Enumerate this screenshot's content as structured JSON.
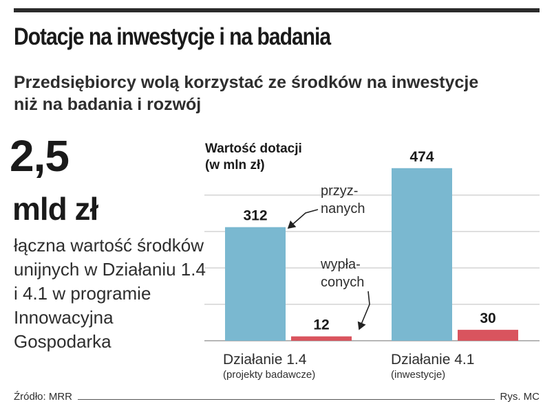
{
  "header": {
    "title": "Dotacje na inwestycje i na badania",
    "subtitle": "Przedsiębiorcy wolą korzystać ze środków na inwestycje niż na badania i rozwój"
  },
  "highlight": {
    "value": "2,5",
    "unit": "mld zł",
    "description": "łączna wartość środków unijnych w Działaniu 1.4 i 4.1 w programie Innowacyjna Gospodarka"
  },
  "footer": {
    "source": "Źródło: MRR",
    "credit": "Rys. MC"
  },
  "chart_data": {
    "type": "bar",
    "title": "Wartość dotacji (w mln zł)",
    "title_lines": [
      "Wartość dotacji",
      "(w mln zł)"
    ],
    "categories": [
      "Działanie 1.4",
      "Działanie 4.1"
    ],
    "category_sublabels": [
      "(projekty badawcze)",
      "(inwestycje)"
    ],
    "series": [
      {
        "name": "przyznanych",
        "name_lines": [
          "przyz-",
          "nanych"
        ],
        "values": [
          312,
          474
        ],
        "color": "#7ab8d0"
      },
      {
        "name": "wypłaconych",
        "name_lines": [
          "wypła-",
          "conych"
        ],
        "values": [
          12,
          30
        ],
        "color": "#d9545e"
      }
    ],
    "ylim": [
      0,
      500
    ],
    "grid": true,
    "legend": "inline annotations with arrows"
  }
}
